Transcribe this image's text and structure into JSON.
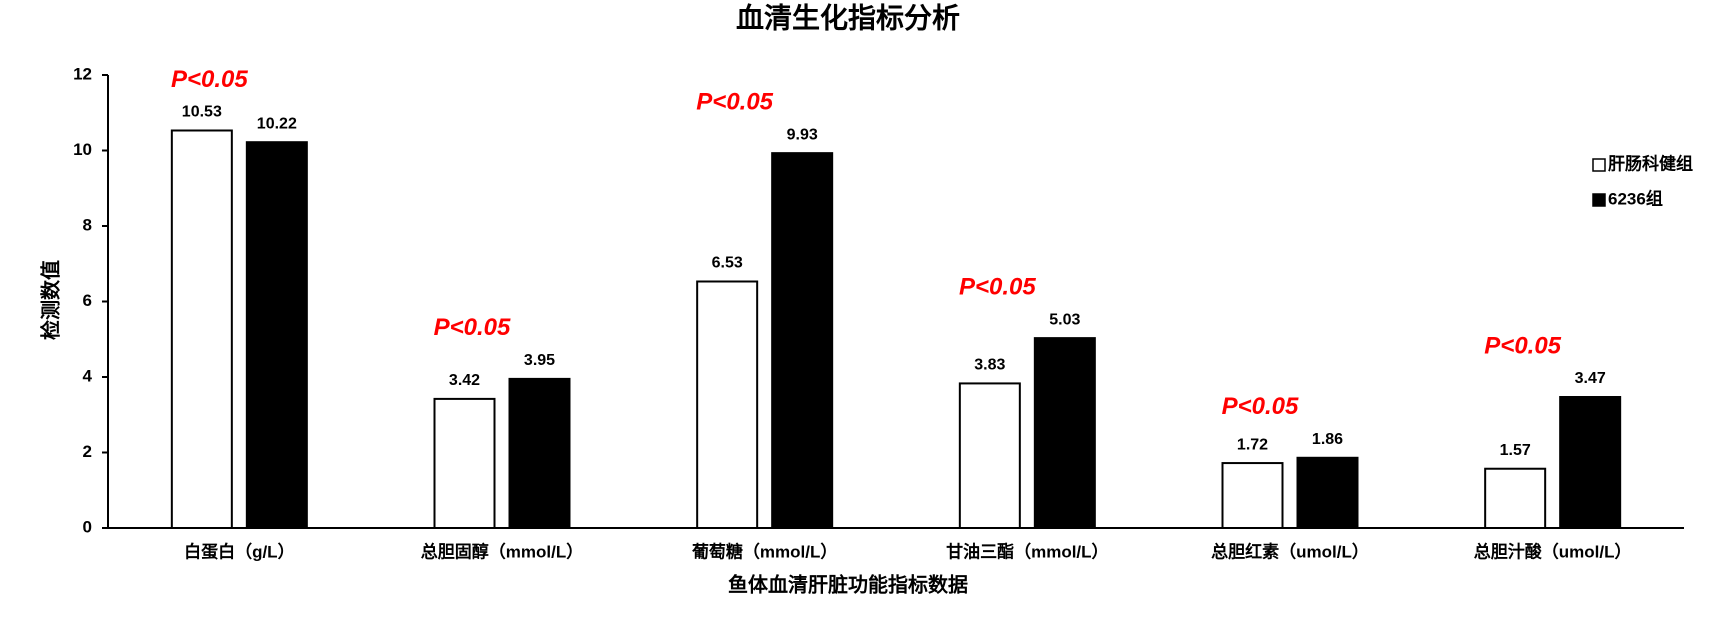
{
  "chart_data": {
    "type": "bar",
    "title": "血清生化指标分析",
    "y_label": "检测数值",
    "x_label": "鱼体血清肝脏功能指标数据",
    "categories": [
      "白蛋白（g/L）",
      "总胆固醇（mmol/L）",
      "葡萄糖（mmol/L）",
      "甘油三酯（mmol/L）",
      "总胆红素（umol/L）",
      "总胆汁酸（umol/L）"
    ],
    "series": [
      {
        "name": "肝肠科健组",
        "color": "#ffffff",
        "values": [
          10.53,
          3.42,
          6.53,
          3.83,
          1.72,
          1.57
        ]
      },
      {
        "name": "6236组",
        "color": "#000000",
        "values": [
          10.22,
          3.95,
          9.93,
          5.03,
          1.86,
          3.47
        ]
      }
    ],
    "annotations": [
      "P<0.05",
      "P<0.05",
      "P<0.05",
      "P<0.05",
      "P<0.05",
      "P<0.05"
    ],
    "annotation_color": "#ff0000",
    "ylim": [
      0,
      12
    ],
    "yticks": [
      0,
      2,
      4,
      6,
      8,
      10,
      12
    ],
    "grid": false,
    "legend": "right"
  }
}
